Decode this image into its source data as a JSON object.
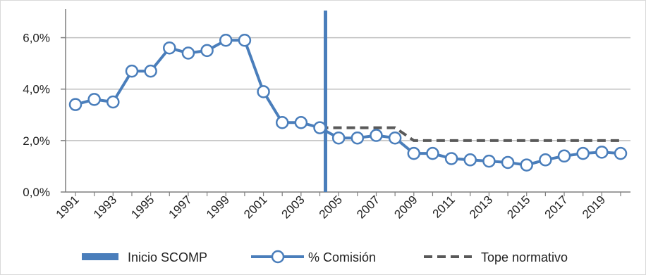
{
  "chart_data": {
    "type": "line",
    "title": "",
    "xlabel": "",
    "ylabel": "",
    "xlim": [
      1991,
      2020
    ],
    "ylim": [
      0,
      0.07
    ],
    "y_ticks": [
      0.0,
      0.02,
      0.04,
      0.06
    ],
    "y_tick_labels": [
      "0,0%",
      "2,0%",
      "4,0%",
      "6,0%"
    ],
    "x_tick_labels": [
      "1991",
      "1993",
      "1995",
      "1997",
      "1999",
      "2001",
      "2003",
      "2005",
      "2007",
      "2009",
      "2011",
      "2013",
      "2015",
      "2017",
      "2019"
    ],
    "grid": "horizontal",
    "legend_position": "bottom",
    "colors": {
      "line": "#4a7ebb",
      "marker_fill": "#ffffff",
      "vline": "#4a7ebb",
      "tope": "#595959",
      "grid": "#bfbfbf",
      "axis": "#7f7f7f"
    },
    "vertical_line": {
      "name": "Inicio SCOMP",
      "x": 2004.3
    },
    "series": [
      {
        "name": "% Comisión",
        "style": "line-markers",
        "x": [
          1991,
          1992,
          1993,
          1994,
          1995,
          1996,
          1997,
          1998,
          1999,
          2000,
          2001,
          2002,
          2003,
          2004,
          2005,
          2006,
          2007,
          2008,
          2009,
          2010,
          2011,
          2012,
          2013,
          2014,
          2015,
          2016,
          2017,
          2018,
          2019,
          2020
        ],
        "values": [
          0.034,
          0.036,
          0.035,
          0.047,
          0.047,
          0.056,
          0.054,
          0.055,
          0.059,
          0.059,
          0.039,
          0.027,
          0.027,
          0.025,
          0.021,
          0.021,
          0.022,
          0.021,
          0.015,
          0.015,
          0.013,
          0.0125,
          0.012,
          0.0115,
          0.0105,
          0.0125,
          0.014,
          0.015,
          0.0155,
          0.015
        ]
      },
      {
        "name": "Tope normativo",
        "style": "dashed",
        "x": [
          2004,
          2005,
          2006,
          2007,
          2008,
          2009,
          2010,
          2011,
          2012,
          2013,
          2014,
          2015,
          2016,
          2017,
          2018,
          2019,
          2020
        ],
        "values": [
          0.025,
          0.025,
          0.025,
          0.025,
          0.025,
          0.02,
          0.02,
          0.02,
          0.02,
          0.02,
          0.02,
          0.02,
          0.02,
          0.02,
          0.02,
          0.02,
          0.02
        ]
      }
    ]
  }
}
